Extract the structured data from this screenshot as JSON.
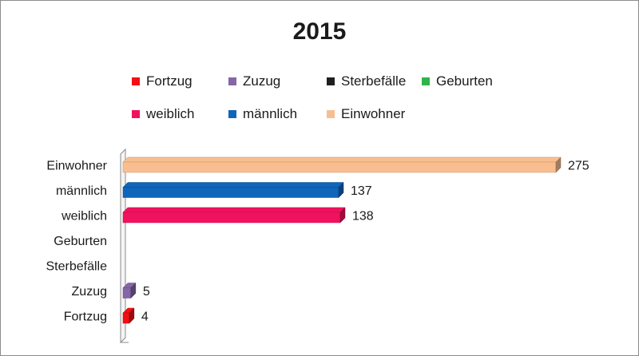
{
  "chart_data": {
    "type": "bar",
    "orientation": "horizontal",
    "title": "2015",
    "categories": [
      "Einwohner",
      "männlich",
      "weiblich",
      "Geburten",
      "Sterbefälle",
      "Zuzug",
      "Fortzug"
    ],
    "values": [
      275,
      137,
      138,
      null,
      null,
      5,
      4
    ],
    "colors": [
      "#F9BE8F",
      "#0F65B9",
      "#F0125E",
      "#2DB54A",
      "#1F1F1F",
      "#8566A6",
      "#F21014"
    ],
    "legend": [
      {
        "label": "Fortzug",
        "color": "#F21014"
      },
      {
        "label": "Zuzug",
        "color": "#8566A6"
      },
      {
        "label": "Sterbefälle",
        "color": "#1F1F1F"
      },
      {
        "label": "Geburten",
        "color": "#2DB54A"
      },
      {
        "label": "weiblich",
        "color": "#F0125E"
      },
      {
        "label": "männlich",
        "color": "#0F65B9"
      },
      {
        "label": "Einwohner",
        "color": "#F9BE8F"
      }
    ],
    "legend_position": "top",
    "xlim": [
      0,
      275
    ],
    "grid": false,
    "xlabel": "",
    "ylabel": ""
  }
}
